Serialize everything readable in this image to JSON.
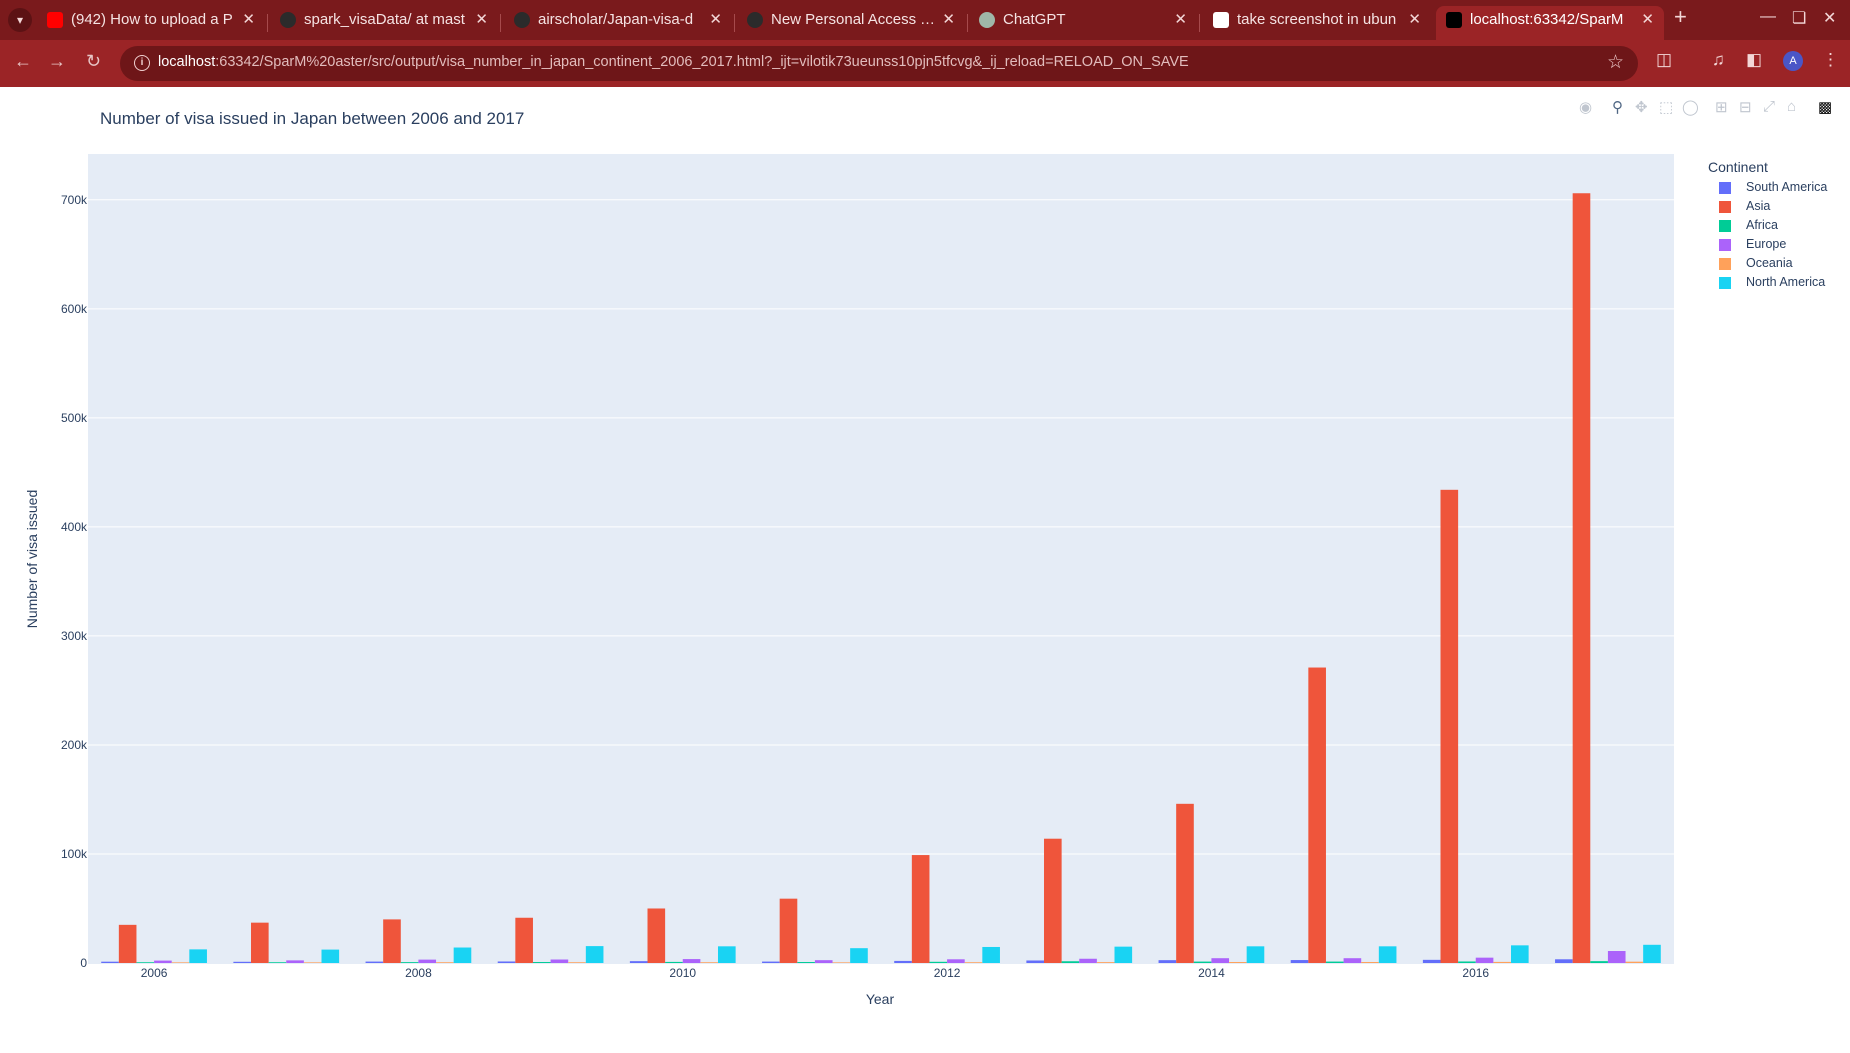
{
  "browser": {
    "tabs": [
      {
        "title": "(942) How to upload a P",
        "favicon": "youtube-icon",
        "active": false
      },
      {
        "title": "spark_visaData/ at mast",
        "favicon": "github-icon",
        "active": false
      },
      {
        "title": "airscholar/Japan-visa-d",
        "favicon": "github-icon",
        "active": false
      },
      {
        "title": "New Personal Access To",
        "favicon": "github-icon",
        "active": false
      },
      {
        "title": "ChatGPT",
        "favicon": "chatgpt-icon",
        "active": false
      },
      {
        "title": "take screenshot in ubun",
        "favicon": "google-icon",
        "active": false
      },
      {
        "title": "localhost:63342/SparM",
        "favicon": "pycharm-icon",
        "active": true
      }
    ],
    "url_host": "localhost",
    "url_rest": ":63342/SparM%20aster/src/output/visa_number_in_japan_continent_2006_2017.html?_ijt=vilotik73ueunss10pjn5tfcvg&_ij_reload=RELOAD_ON_SAVE",
    "profile_initial": "A",
    "colors": {
      "frame": "#7a1a1c",
      "toolbar": "#9b2426",
      "omnibox": "#6e1618"
    }
  },
  "chart_data": {
    "type": "bar",
    "title": "Number of visa issued in Japan between 2006 and 2017",
    "xlabel": "Year",
    "ylabel": "Number of visa issued",
    "categories": [
      "2006",
      "2007",
      "2008",
      "2009",
      "2010",
      "2011",
      "2012",
      "2013",
      "2014",
      "2015",
      "2016",
      "2017"
    ],
    "x_tick_labels": [
      "2006",
      "2008",
      "2010",
      "2012",
      "2014",
      "2016"
    ],
    "y_tick_labels": [
      "0",
      "100k",
      "200k",
      "300k",
      "400k",
      "500k",
      "600k",
      "700k"
    ],
    "y_ticks": [
      0,
      100000,
      200000,
      300000,
      400000,
      500000,
      600000,
      700000
    ],
    "ylim": [
      0,
      742000
    ],
    "grid": true,
    "legend_title": "Continent",
    "legend_position": "right",
    "plot_bg": "#e5ecf6",
    "series": [
      {
        "name": "South America",
        "color": "#636efa",
        "values": [
          1200,
          1100,
          1300,
          1400,
          1700,
          1300,
          1900,
          2300,
          2600,
          2700,
          2900,
          3400
        ]
      },
      {
        "name": "Asia",
        "color": "#ef553b",
        "values": [
          35000,
          37000,
          40000,
          41500,
          50000,
          59000,
          99000,
          114000,
          146000,
          271000,
          434000,
          706000
        ]
      },
      {
        "name": "Africa",
        "color": "#00cc96",
        "values": [
          700,
          700,
          800,
          900,
          1000,
          900,
          1100,
          1600,
          1300,
          1300,
          1400,
          1700
        ]
      },
      {
        "name": "Europe",
        "color": "#ab63fa",
        "values": [
          2200,
          2400,
          3100,
          3200,
          3600,
          2600,
          3400,
          3900,
          4400,
          4400,
          4900,
          11000
        ]
      },
      {
        "name": "Oceania",
        "color": "#ffa15a",
        "values": [
          600,
          600,
          700,
          700,
          700,
          600,
          700,
          800,
          900,
          900,
          1000,
          1200
        ]
      },
      {
        "name": "North America",
        "color": "#19d3f3",
        "values": [
          12500,
          12300,
          14200,
          15500,
          15300,
          13600,
          14700,
          15000,
          15300,
          15300,
          16200,
          16700
        ]
      }
    ]
  }
}
